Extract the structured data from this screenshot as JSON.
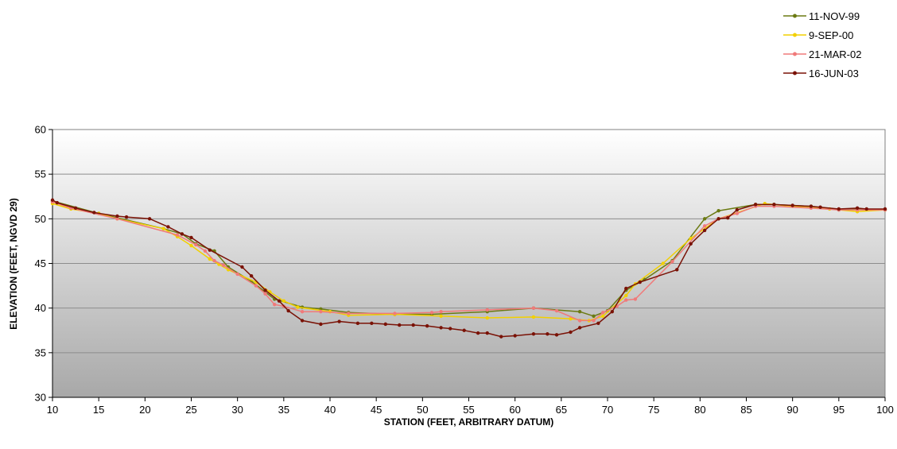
{
  "chart_data": {
    "type": "line",
    "title": "",
    "xlabel": "STATION (FEET, ARBITRARY DATUM)",
    "ylabel": "ELEVATION (FEET, NGVD 29)",
    "xlim": [
      10,
      100
    ],
    "ylim": [
      30,
      60
    ],
    "x_ticks": [
      10,
      15,
      20,
      25,
      30,
      35,
      40,
      45,
      50,
      55,
      60,
      65,
      70,
      75,
      80,
      85,
      90,
      95,
      100
    ],
    "y_ticks": [
      30,
      35,
      40,
      45,
      50,
      55,
      60
    ],
    "grid": "horizontal",
    "legend_position": "top-right",
    "background": "vertical gradient white to gray",
    "series": [
      {
        "name": "11-NOV-99",
        "color": "#6b7a12",
        "points": [
          [
            10,
            52.0
          ],
          [
            15,
            50.6
          ],
          [
            22,
            48.9
          ],
          [
            24,
            48.3
          ],
          [
            25.5,
            47.2
          ],
          [
            27.5,
            46.4
          ],
          [
            29,
            44.6
          ],
          [
            31.5,
            43.0
          ],
          [
            34,
            41.0
          ],
          [
            37,
            40.1
          ],
          [
            39,
            39.9
          ],
          [
            42,
            39.5
          ],
          [
            47,
            39.3
          ],
          [
            51,
            39.3
          ],
          [
            57,
            39.6
          ],
          [
            62,
            40.0
          ],
          [
            67,
            39.6
          ],
          [
            68.5,
            39.1
          ],
          [
            70,
            39.7
          ],
          [
            72,
            42.0
          ],
          [
            74,
            43.2
          ],
          [
            77,
            45.3
          ],
          [
            80.5,
            50.0
          ],
          [
            82,
            50.9
          ],
          [
            86,
            51.6
          ],
          [
            88,
            51.6
          ],
          [
            92,
            51.4
          ],
          [
            95,
            51.0
          ],
          [
            97,
            51.1
          ],
          [
            100,
            51.0
          ]
        ]
      },
      {
        "name": "9-SEP-00",
        "color": "#f2d000",
        "points": [
          [
            10,
            51.7
          ],
          [
            12,
            51.1
          ],
          [
            15,
            50.6
          ],
          [
            17,
            50.0
          ],
          [
            22,
            48.9
          ],
          [
            23.5,
            48.0
          ],
          [
            25,
            47.0
          ],
          [
            27,
            45.5
          ],
          [
            28,
            44.9
          ],
          [
            29,
            44.3
          ],
          [
            32,
            42.9
          ],
          [
            33.5,
            41.8
          ],
          [
            35,
            40.8
          ],
          [
            36.5,
            40.1
          ],
          [
            40,
            39.6
          ],
          [
            42,
            39.2
          ],
          [
            47,
            39.3
          ],
          [
            52,
            39.1
          ],
          [
            57,
            38.9
          ],
          [
            62,
            39.0
          ],
          [
            66,
            38.8
          ],
          [
            68,
            38.6
          ],
          [
            69.5,
            39.1
          ],
          [
            72,
            41.4
          ],
          [
            73,
            42.7
          ],
          [
            76,
            45.0
          ],
          [
            79,
            47.8
          ],
          [
            82,
            50.0
          ],
          [
            87,
            51.7
          ],
          [
            90,
            51.4
          ],
          [
            94,
            51.1
          ],
          [
            97,
            50.8
          ],
          [
            100,
            51.0
          ]
        ]
      },
      {
        "name": "21-MAR-02",
        "color": "#f07a7a",
        "points": [
          [
            10,
            51.9
          ],
          [
            12,
            51.2
          ],
          [
            17,
            50.0
          ],
          [
            23.5,
            48.2
          ],
          [
            25.5,
            47.1
          ],
          [
            26.5,
            46.4
          ],
          [
            27.5,
            45.3
          ],
          [
            28.5,
            44.8
          ],
          [
            30,
            43.8
          ],
          [
            32,
            42.5
          ],
          [
            33,
            41.6
          ],
          [
            34,
            40.4
          ],
          [
            35,
            40.2
          ],
          [
            37,
            39.6
          ],
          [
            39,
            39.6
          ],
          [
            42,
            39.4
          ],
          [
            47,
            39.4
          ],
          [
            51,
            39.5
          ],
          [
            52,
            39.6
          ],
          [
            57,
            39.8
          ],
          [
            62,
            40.0
          ],
          [
            64.5,
            39.7
          ],
          [
            67,
            38.6
          ],
          [
            68.5,
            38.6
          ],
          [
            69.5,
            39.5
          ],
          [
            71,
            40.2
          ],
          [
            72,
            40.9
          ],
          [
            73,
            41.0
          ],
          [
            77,
            45.2
          ],
          [
            80.5,
            49.2
          ],
          [
            82,
            50.0
          ],
          [
            84,
            50.6
          ],
          [
            86,
            51.4
          ],
          [
            88,
            51.4
          ],
          [
            92,
            51.2
          ],
          [
            95,
            51.0
          ],
          [
            97,
            51.0
          ],
          [
            100,
            51.0
          ]
        ]
      },
      {
        "name": "16-JUN-03",
        "color": "#7a1206",
        "points": [
          [
            10,
            52.1
          ],
          [
            10.5,
            51.8
          ],
          [
            12.5,
            51.2
          ],
          [
            14.5,
            50.7
          ],
          [
            17,
            50.3
          ],
          [
            18,
            50.2
          ],
          [
            20.5,
            50.0
          ],
          [
            22.5,
            49.1
          ],
          [
            24,
            48.3
          ],
          [
            25,
            47.9
          ],
          [
            27,
            46.5
          ],
          [
            30.5,
            44.6
          ],
          [
            31.5,
            43.6
          ],
          [
            33,
            42.0
          ],
          [
            34.5,
            40.8
          ],
          [
            35.5,
            39.7
          ],
          [
            37,
            38.6
          ],
          [
            39,
            38.2
          ],
          [
            41,
            38.5
          ],
          [
            43,
            38.3
          ],
          [
            44.5,
            38.3
          ],
          [
            46,
            38.2
          ],
          [
            47.5,
            38.1
          ],
          [
            49,
            38.1
          ],
          [
            50.5,
            38.0
          ],
          [
            52,
            37.8
          ],
          [
            53,
            37.7
          ],
          [
            54.5,
            37.5
          ],
          [
            56,
            37.2
          ],
          [
            57,
            37.2
          ],
          [
            58.5,
            36.8
          ],
          [
            60,
            36.9
          ],
          [
            62,
            37.1
          ],
          [
            63.5,
            37.1
          ],
          [
            64.5,
            37.0
          ],
          [
            66,
            37.3
          ],
          [
            67,
            37.8
          ],
          [
            69,
            38.3
          ],
          [
            70.5,
            39.6
          ],
          [
            72,
            42.2
          ],
          [
            73.5,
            42.9
          ],
          [
            77.5,
            44.3
          ],
          [
            79,
            47.2
          ],
          [
            80.5,
            48.7
          ],
          [
            82,
            50.0
          ],
          [
            83,
            50.1
          ],
          [
            84,
            51.0
          ],
          [
            86,
            51.6
          ],
          [
            88,
            51.6
          ],
          [
            90,
            51.5
          ],
          [
            92,
            51.4
          ],
          [
            93,
            51.3
          ],
          [
            95,
            51.1
          ],
          [
            97,
            51.2
          ],
          [
            98,
            51.1
          ],
          [
            100,
            51.1
          ]
        ]
      }
    ]
  }
}
